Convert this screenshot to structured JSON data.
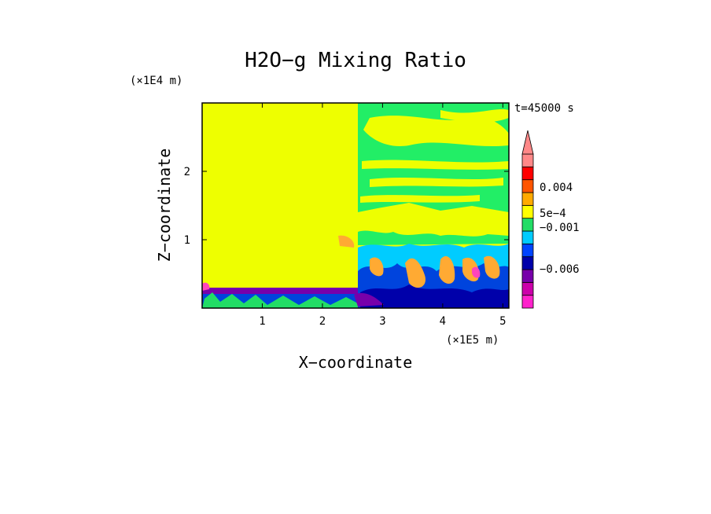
{
  "chart_data": {
    "type": "heatmap",
    "title": "H2O−g Mixing Ratio",
    "xlabel": "X−coordinate",
    "ylabel": "Z−coordinate",
    "x_unit": "(×1E5 m)",
    "y_unit": "(×1E4 m)",
    "time_label": "t=45000 s",
    "xlim": [
      0,
      5.1
    ],
    "ylim": [
      0,
      3.0
    ],
    "x_ticks": [
      1,
      2,
      3,
      4,
      5
    ],
    "y_ticks": [
      1,
      2
    ],
    "colorbar": {
      "colors": [
        "#ff22cc",
        "#cc00aa",
        "#7700aa",
        "#0000aa",
        "#0044ff",
        "#00ccff",
        "#22dd66",
        "#ffff00",
        "#ffaa00",
        "#ff5500",
        "#ff0000",
        "#ff8888"
      ],
      "labels": [
        "−0.006",
        "−0.001",
        "5e−4",
        "0.004"
      ],
      "extend": "max"
    },
    "regions": {
      "background": "#eeff00",
      "front_x": 2.58,
      "upper_bands": "#22ee66",
      "lower_turbulence": [
        "#00ccff",
        "#0044dd",
        "#7700aa",
        "#ffaa33",
        "#ff44bb"
      ]
    }
  }
}
